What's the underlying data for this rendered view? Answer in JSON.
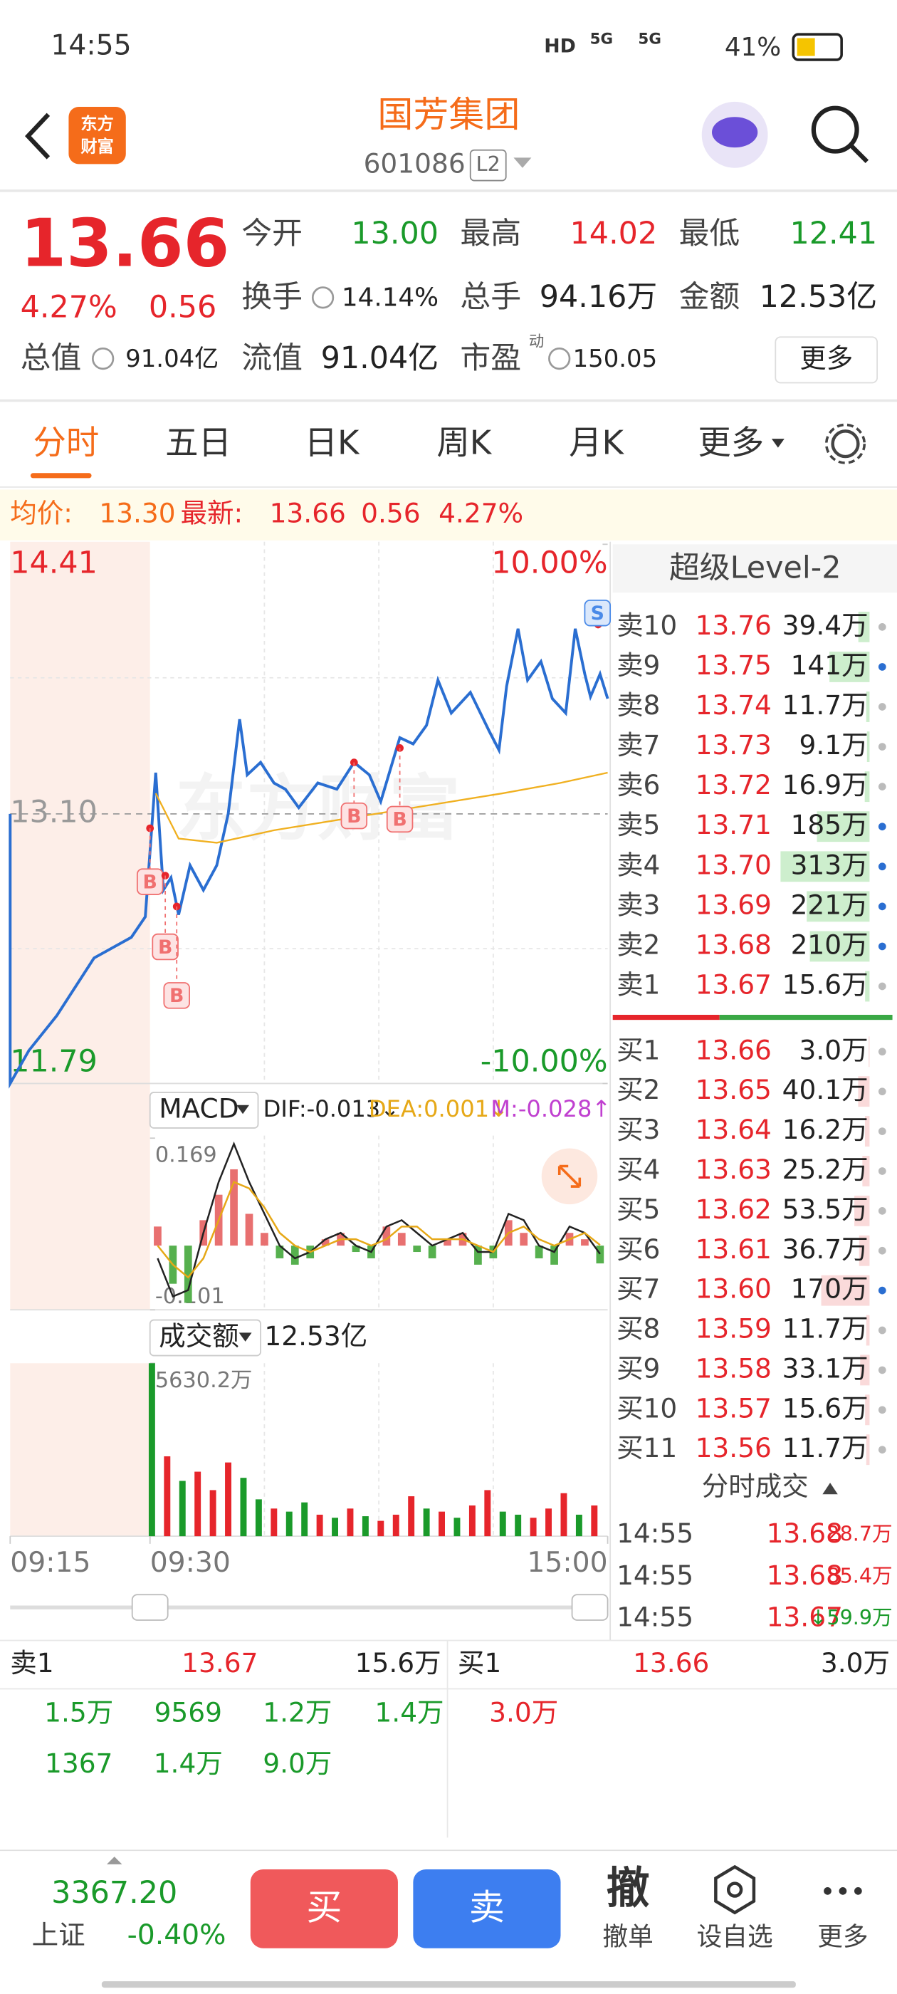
{
  "status": {
    "time": "14:55",
    "hd": "HD",
    "network": [
      "5G",
      "5G"
    ],
    "battery": "41%"
  },
  "header": {
    "logo": [
      "东方",
      "财富"
    ],
    "title": "国芳集团",
    "code": "601086",
    "level": "L2"
  },
  "quote": {
    "price": "13.66",
    "change_pct": "4.27%",
    "change": "0.56",
    "fields": [
      {
        "label": "今开",
        "value": "13.00",
        "color": "#1a9a2a"
      },
      {
        "label": "最高",
        "value": "14.02",
        "color": "#e6252b"
      },
      {
        "label": "最低",
        "value": "12.41",
        "color": "#1a9a2a"
      },
      {
        "label": "换手",
        "value": "14.14%",
        "color": "#222222"
      },
      {
        "label": "总手",
        "value": "94.16万",
        "color": "#222222"
      },
      {
        "label": "金额",
        "value": "12.53亿",
        "color": "#222222"
      },
      {
        "label": "总值",
        "value": "91.04亿",
        "color": "#222222"
      },
      {
        "label": "流值",
        "value": "91.04亿",
        "color": "#222222"
      },
      {
        "label": "市盈",
        "sup": "动",
        "value": "150.05",
        "color": "#222222"
      }
    ],
    "more": "更多"
  },
  "tabs": [
    "分时",
    "五日",
    "日K",
    "周K",
    "月K",
    "更多"
  ],
  "info_bar": {
    "avg_label": "均价:",
    "avg": "13.30",
    "latest_label": "最新:",
    "latest": "13.66",
    "change": "0.56",
    "change_pct": "4.27%"
  },
  "chart_data": [
    {
      "type": "line",
      "watermark": "东方财富",
      "xlim": [
        0,
        255
      ],
      "xticks": [
        {
          "value": 0,
          "label": "09:15"
        },
        {
          "value": 15,
          "label": "09:30"
        },
        {
          "value": 255,
          "label": "15:00"
        }
      ],
      "ylim": [
        11.79,
        14.41
      ],
      "yticks": [
        11.79,
        {
          "value": 13.1,
          "label": "13.10"
        },
        14.41
      ],
      "y2lim": [
        -10,
        10
      ],
      "y2ticks": [
        {
          "value": -10,
          "label": "-10.00%"
        },
        {
          "value": 10,
          "label": "10.00%"
        }
      ],
      "series": [
        {
          "color": "#2a6ed1",
          "x": [
            0,
            0,
            2,
            5,
            9,
            13,
            14.5,
            18,
            22,
            26,
            30,
            36,
            43,
            50,
            56,
            62,
            66,
            73,
            80,
            86,
            93,
            103,
            113,
            122,
            130,
            136,
            146,
            153,
            160,
            166,
            173,
            183,
            193,
            198,
            202,
            208,
            213,
            220,
            226,
            233,
            238,
            243,
            246,
            251,
            255
          ],
          "values": [
            13.1,
            11.79,
            11.95,
            12.12,
            12.4,
            12.5,
            12.6,
            13.3,
            12.73,
            12.79,
            12.61,
            12.85,
            12.73,
            12.85,
            13.1,
            13.56,
            13.29,
            13.35,
            13.25,
            13.22,
            13.13,
            13.25,
            13.22,
            13.35,
            13.29,
            13.16,
            13.47,
            13.44,
            13.53,
            13.75,
            13.59,
            13.69,
            13.5,
            13.41,
            13.72,
            14.0,
            13.75,
            13.84,
            13.66,
            13.59,
            14.0,
            13.78,
            13.67,
            13.78,
            13.66
          ]
        },
        {
          "color": "#f0b020",
          "x": [
            18,
            30,
            50,
            80,
            120,
            160,
            200,
            230,
            255
          ],
          "values": [
            13.2,
            12.98,
            12.96,
            13.02,
            13.08,
            13.14,
            13.2,
            13.25,
            13.3
          ]
        }
      ],
      "markers": [
        {
          "label": "B",
          "x": 15,
          "value": 13.03
        },
        {
          "label": "B",
          "x": 23,
          "value": 12.8
        },
        {
          "label": "B",
          "x": 29,
          "value": 12.65
        },
        {
          "label": "B",
          "x": 122,
          "value": 13.35
        },
        {
          "label": "B",
          "x": 146,
          "value": 13.42
        },
        {
          "label": "S",
          "x": 250,
          "value": 14.02
        }
      ]
    },
    {
      "type": "macd",
      "title": "MACD",
      "ylim": [
        -0.101,
        0.169
      ],
      "yticks": [
        -0.101,
        0.169
      ],
      "x": [
        19,
        27,
        35,
        43,
        51,
        59,
        67,
        75,
        83,
        91,
        99,
        107,
        115,
        123,
        131,
        139,
        147,
        155,
        163,
        171,
        179,
        187,
        195,
        203,
        211,
        219,
        227,
        235,
        243,
        251
      ],
      "series": [
        {
          "label": "DIF:-0.013↓",
          "color": "#222222",
          "values": [
            -0.02,
            -0.08,
            -0.07,
            0.02,
            0.1,
            0.16,
            0.1,
            0.05,
            0.0,
            -0.02,
            -0.01,
            0.01,
            0.02,
            0.0,
            -0.01,
            0.03,
            0.04,
            0.02,
            0.0,
            0.01,
            0.02,
            -0.01,
            -0.01,
            0.05,
            0.04,
            0.0,
            -0.01,
            0.03,
            0.02,
            -0.013
          ]
        },
        {
          "label": "DEA:0.001↓",
          "color": "#e6a817",
          "values": [
            0.0,
            -0.03,
            -0.05,
            -0.02,
            0.04,
            0.1,
            0.09,
            0.06,
            0.02,
            0.0,
            -0.01,
            0.0,
            0.01,
            0.01,
            0.0,
            0.01,
            0.03,
            0.03,
            0.01,
            0.01,
            0.01,
            0.0,
            -0.01,
            0.02,
            0.03,
            0.01,
            0.0,
            0.01,
            0.02,
            0.001
          ]
        },
        {
          "label": "M:-0.028↑",
          "color": "#c040d0",
          "values": [
            0.03,
            -0.06,
            -0.09,
            0.04,
            0.08,
            0.12,
            0.05,
            0.02,
            -0.02,
            -0.03,
            -0.02,
            0.01,
            0.02,
            -0.01,
            -0.02,
            0.03,
            0.02,
            -0.01,
            -0.02,
            0.01,
            0.02,
            -0.03,
            -0.02,
            0.04,
            0.02,
            -0.02,
            -0.03,
            0.02,
            0.01,
            -0.028
          ]
        }
      ]
    },
    {
      "type": "bar",
      "title": "成交额",
      "total": "12.53亿",
      "ylim": [
        0,
        5630.2
      ],
      "yticks": [
        {
          "value": 5630.2,
          "label": "5630.2万"
        }
      ],
      "x": [
        16,
        24,
        32,
        40,
        48,
        56,
        64,
        72,
        80,
        88,
        96,
        104,
        112,
        120,
        128,
        136,
        144,
        152,
        160,
        168,
        176,
        184,
        192,
        200,
        208,
        216,
        224,
        232,
        240,
        248
      ],
      "values": [
        5630.2,
        2600,
        1800,
        2100,
        1500,
        2400,
        1900,
        1200,
        900,
        800,
        1100,
        700,
        600,
        900,
        650,
        500,
        700,
        1300,
        900,
        800,
        600,
        1000,
        1500,
        800,
        700,
        600,
        900,
        1400,
        700,
        1000
      ],
      "colors": [
        "#1a9a2a",
        "#e6252b",
        "#1a9a2a",
        "#e6252b",
        "#e6252b",
        "#e6252b",
        "#1a9a2a",
        "#1a9a2a",
        "#e6252b",
        "#1a9a2a",
        "#1a9a2a",
        "#e6252b",
        "#1a9a2a",
        "#e6252b",
        "#1a9a2a",
        "#e6252b",
        "#e6252b",
        "#e6252b",
        "#1a9a2a",
        "#e6252b",
        "#1a9a2a",
        "#e6252b",
        "#e6252b",
        "#1a9a2a",
        "#1a9a2a",
        "#e6252b",
        "#e6252b",
        "#e6252b",
        "#1a9a2a",
        "#e6252b"
      ]
    }
  ],
  "order_book": {
    "title": "超级Level-2",
    "sells": [
      {
        "label": "卖10",
        "price": "13.76",
        "volume": 39.4,
        "volume_label": "39.4万"
      },
      {
        "label": "卖9",
        "price": "13.75",
        "volume": 141,
        "volume_label": "141万"
      },
      {
        "label": "卖8",
        "price": "13.74",
        "volume": 11.7,
        "volume_label": "11.7万"
      },
      {
        "label": "卖7",
        "price": "13.73",
        "volume": 9.1,
        "volume_label": "9.1万"
      },
      {
        "label": "卖6",
        "price": "13.72",
        "volume": 16.9,
        "volume_label": "16.9万"
      },
      {
        "label": "卖5",
        "price": "13.71",
        "volume": 185,
        "volume_label": "185万"
      },
      {
        "label": "卖4",
        "price": "13.70",
        "volume": 313,
        "volume_label": "313万"
      },
      {
        "label": "卖3",
        "price": "13.69",
        "volume": 221,
        "volume_label": "221万"
      },
      {
        "label": "卖2",
        "price": "13.68",
        "volume": 210,
        "volume_label": "210万"
      },
      {
        "label": "卖1",
        "price": "13.67",
        "volume": 15.6,
        "volume_label": "15.6万"
      }
    ],
    "buys": [
      {
        "label": "买1",
        "price": "13.66",
        "volume": 3.0,
        "volume_label": "3.0万"
      },
      {
        "label": "买2",
        "price": "13.65",
        "volume": 40.1,
        "volume_label": "40.1万"
      },
      {
        "label": "买3",
        "price": "13.64",
        "volume": 16.2,
        "volume_label": "16.2万"
      },
      {
        "label": "买4",
        "price": "13.63",
        "volume": 25.2,
        "volume_label": "25.2万"
      },
      {
        "label": "买5",
        "price": "13.62",
        "volume": 53.5,
        "volume_label": "53.5万"
      },
      {
        "label": "买6",
        "price": "13.61",
        "volume": 36.7,
        "volume_label": "36.7万"
      },
      {
        "label": "买7",
        "price": "13.60",
        "volume": 170,
        "volume_label": "170万"
      },
      {
        "label": "买8",
        "price": "13.59",
        "volume": 11.7,
        "volume_label": "11.7万"
      },
      {
        "label": "买9",
        "price": "13.58",
        "volume": 33.1,
        "volume_label": "33.1万"
      },
      {
        "label": "买10",
        "price": "13.57",
        "volume": 15.6,
        "volume_label": "15.6万"
      },
      {
        "label": "买11",
        "price": "13.56",
        "volume": 11.7,
        "volume_label": "11.7万"
      }
    ]
  },
  "trades": {
    "title": "分时成交",
    "rows": [
      {
        "time": "14:55",
        "price": "13.68",
        "volume": "28.7万"
      },
      {
        "time": "14:55",
        "price": "13.68",
        "volume": "85.4万"
      },
      {
        "time": "14:55",
        "price": "13.67",
        "volume": "↓59.9万"
      }
    ]
  },
  "queue": {
    "sell": {
      "label": "卖1",
      "price": "13.67",
      "volume": "15.6万",
      "orders": [
        "1.5万",
        "9569",
        "1.2万",
        "1.4万",
        "1367",
        "1.4万",
        "9.0万"
      ]
    },
    "buy": {
      "label": "买1",
      "price": "13.66",
      "volume": "3.0万",
      "orders": [
        "3.0万"
      ]
    }
  },
  "footer": {
    "index_value": "3367.20",
    "index_name": "上证",
    "index_change": "-0.40%",
    "buy": "买",
    "sell": "卖",
    "cancel_icon": "撤",
    "cancel": "撤单",
    "watch": "设自选",
    "more": "更多"
  }
}
